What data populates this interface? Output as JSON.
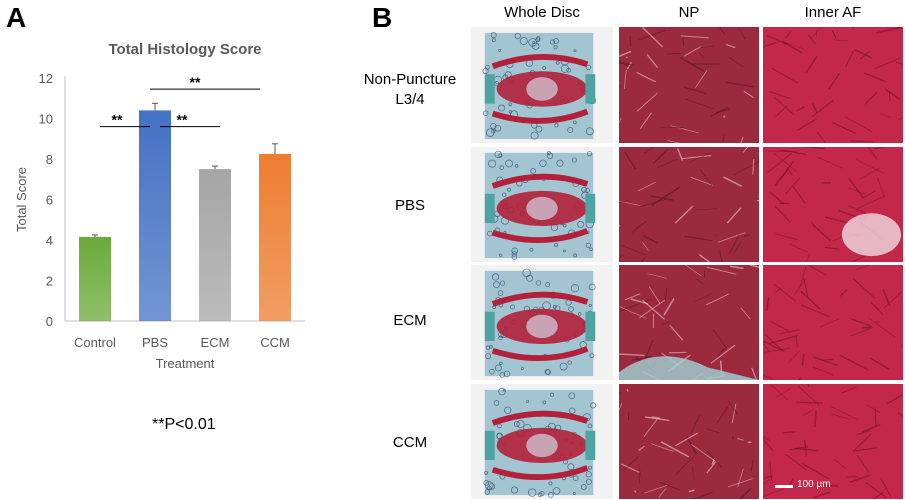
{
  "panel_a_letter": "A",
  "panel_b_letter": "B",
  "significance_note": "**P<0.01",
  "chart_data": {
    "type": "bar",
    "title": "Total Histology Score",
    "xlabel": "Treatment",
    "ylabel": "Total Score",
    "categories": [
      "Control",
      "PBS",
      "ECM",
      "CCM"
    ],
    "values": [
      4.15,
      10.4,
      7.5,
      8.25
    ],
    "errors": [
      0.1,
      0.35,
      0.15,
      0.5
    ],
    "colors": [
      "#6aaa3a",
      "#4472c4",
      "#a5a5a5",
      "#ed7d31"
    ],
    "ylim": [
      0,
      12
    ],
    "yticks": [
      0,
      2,
      4,
      6,
      8,
      10,
      12
    ],
    "grid": false,
    "significance": [
      {
        "from": "Control",
        "to": "PBS",
        "label": "**"
      },
      {
        "from": "PBS",
        "to": "ECM",
        "label": "**"
      },
      {
        "from": "PBS",
        "to": "CCM",
        "label": "**"
      }
    ]
  },
  "histology": {
    "columns": [
      "Whole Disc",
      "NP",
      "Inner AF"
    ],
    "rows": [
      {
        "label_line1": "Non-Puncture",
        "label_line2": "L3/4"
      },
      {
        "label_line1": "PBS",
        "label_line2": ""
      },
      {
        "label_line1": "ECM",
        "label_line2": ""
      },
      {
        "label_line1": "CCM",
        "label_line2": ""
      }
    ],
    "scale_bar_label": "100 µm",
    "stain_colors": {
      "tissue_red": "#b3203a",
      "cartilage_teal": "#4fa3a0",
      "background": "#f2f2f2"
    }
  }
}
